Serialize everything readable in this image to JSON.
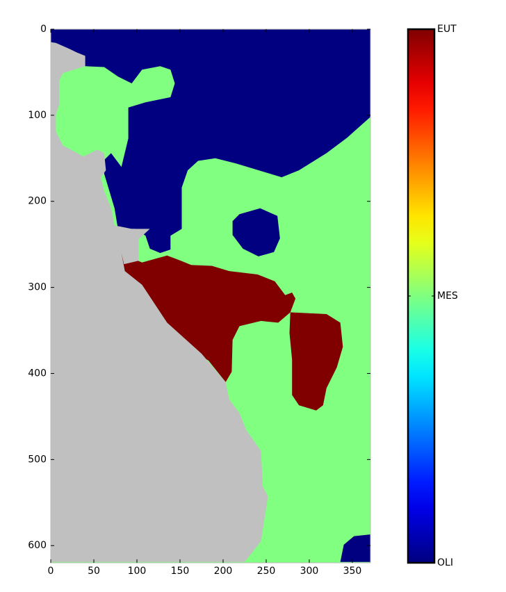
{
  "chart_data": {
    "type": "image",
    "xlim": [
      0,
      371
    ],
    "ylim": [
      0,
      620
    ],
    "invert_y": true,
    "xticks": [
      0,
      50,
      100,
      150,
      200,
      250,
      300,
      350
    ],
    "yticks": [
      0,
      100,
      200,
      300,
      400,
      500,
      600
    ],
    "colormap": "jet",
    "clim": [
      0,
      2
    ],
    "colorbar_ticks": [
      {
        "value": 0,
        "label": "OLI"
      },
      {
        "value": 1,
        "label": "MES"
      },
      {
        "value": 2,
        "label": "EUT"
      }
    ],
    "background_value": 1,
    "mask_color": "#c0c0c0",
    "regions": [
      {
        "value": 0,
        "x": [
          0,
          371,
          371,
          344,
          320,
          288,
          268,
          248,
          215,
          191,
          171,
          159,
          152,
          152,
          139,
          139,
          127,
          115,
          110,
          98,
          78,
          74,
          62,
          62,
          70,
          82,
          90,
          90,
          110,
          139,
          144,
          139,
          127,
          106,
          94,
          78,
          62,
          40,
          0
        ],
        "y": [
          0,
          0,
          102,
          126,
          144,
          164,
          172,
          166,
          156,
          150,
          153,
          164,
          184,
          232,
          240,
          256,
          260,
          255,
          240,
          232,
          232,
          208,
          168,
          152,
          144,
          160,
          127,
          91,
          85,
          79,
          63,
          47,
          43,
          47,
          63,
          55,
          44,
          43,
          31
        ]
      },
      {
        "value": 0,
        "x": [
          219,
          243,
          263,
          266,
          259,
          241,
          223,
          211,
          211
        ],
        "y": [
          215,
          208,
          217,
          243,
          259,
          264,
          255,
          239,
          223
        ]
      },
      {
        "value": 0,
        "x": [
          336,
          340,
          352,
          371,
          371
        ],
        "y": [
          619,
          599,
          589,
          587,
          619
        ]
      },
      {
        "value": 2,
        "x": [
          82,
          90,
          94,
          106,
          135,
          151,
          163,
          187,
          207,
          240,
          260,
          272,
          280,
          284,
          278,
          264,
          244,
          219,
          211,
          210,
          203,
          183,
          155,
          131,
          110,
          106,
          85,
          82
        ],
        "y": [
          258,
          258,
          266,
          271,
          263,
          269,
          274,
          275,
          281,
          285,
          293,
          309,
          306,
          313,
          329,
          341,
          339,
          345,
          361,
          398,
          410,
          385,
          368,
          341,
          321,
          297,
          287,
          273
        ]
      },
      {
        "value": 2,
        "x": [
          278,
          320,
          336,
          339,
          332,
          320,
          316,
          308,
          288,
          280,
          280,
          277
        ],
        "y": [
          329,
          331,
          341,
          369,
          393,
          417,
          437,
          443,
          437,
          425,
          384,
          353
        ]
      },
      {
        "value": null,
        "x": [
          0,
          6,
          22,
          30,
          40,
          40,
          14,
          10,
          10,
          6,
          6,
          14,
          38,
          54,
          62,
          64,
          58,
          62,
          70,
          74,
          94,
          115,
          102,
          102,
          85,
          82,
          86,
          106,
          135,
          175,
          203,
          207,
          219,
          227,
          244,
          246,
          252,
          244,
          225,
          0
        ],
        "y": [
          15,
          16,
          23,
          27,
          31,
          43,
          51,
          59,
          87,
          99,
          119,
          135,
          148,
          140,
          144,
          164,
          172,
          188,
          208,
          228,
          232,
          232,
          244,
          269,
          273,
          260,
          281,
          297,
          341,
          377,
          410,
          430,
          446,
          466,
          490,
          531,
          543,
          595,
          619,
          619
        ]
      }
    ]
  }
}
